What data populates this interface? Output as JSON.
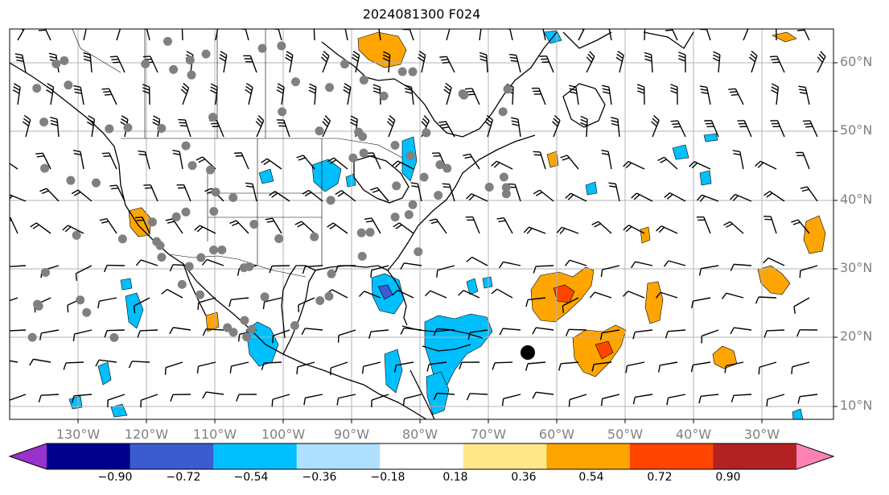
{
  "title": "2024081300 F024",
  "lat_labels": [
    "60°N",
    "50°N",
    "40°N",
    "30°N",
    "20°N",
    "10°N"
  ],
  "lon_labels": [
    "130°W",
    "120°W",
    "110°W",
    "100°W",
    "90°W",
    "80°W",
    "70°W",
    "60°W",
    "50°W",
    "40°W",
    "30°W"
  ],
  "map": {
    "extent": {
      "lon_min": -140,
      "lon_max": -19,
      "lat_min": 8,
      "lat_max": 65
    },
    "gridlines": true,
    "gridline_lons": [
      -130,
      -120,
      -110,
      -100,
      -90,
      -80,
      -70,
      -60,
      -50,
      -40,
      -30
    ],
    "gridline_lats": [
      60,
      50,
      40,
      30,
      20,
      10
    ],
    "field_colors": {
      "purple": "#9932cc",
      "navy": "#00008b",
      "royal_blue": "#3b5bd1",
      "deep_sky": "#00bfff",
      "light_sky": "#b0e0ff",
      "white": "#ffffff",
      "light_yellow": "#ffe88a",
      "orange": "#ffa500",
      "red_orange": "#ff4500",
      "dark_red": "#b22222",
      "pink": "#ff82b4"
    },
    "station_marker_color": "#808080",
    "storm_marker_color": "#000000"
  },
  "colorbar": {
    "ticks": [
      "−0.90",
      "−0.72",
      "−0.54",
      "−0.36",
      "−0.18",
      "0.18",
      "0.36",
      "0.54",
      "0.72",
      "0.90"
    ],
    "colors": [
      "#9932cc",
      "#00008b",
      "#3b5bd1",
      "#00bfff",
      "#b0e0ff",
      "#ffffff",
      "#ffe88a",
      "#ffa500",
      "#ff4500",
      "#b22222",
      "#ff82b4"
    ]
  }
}
